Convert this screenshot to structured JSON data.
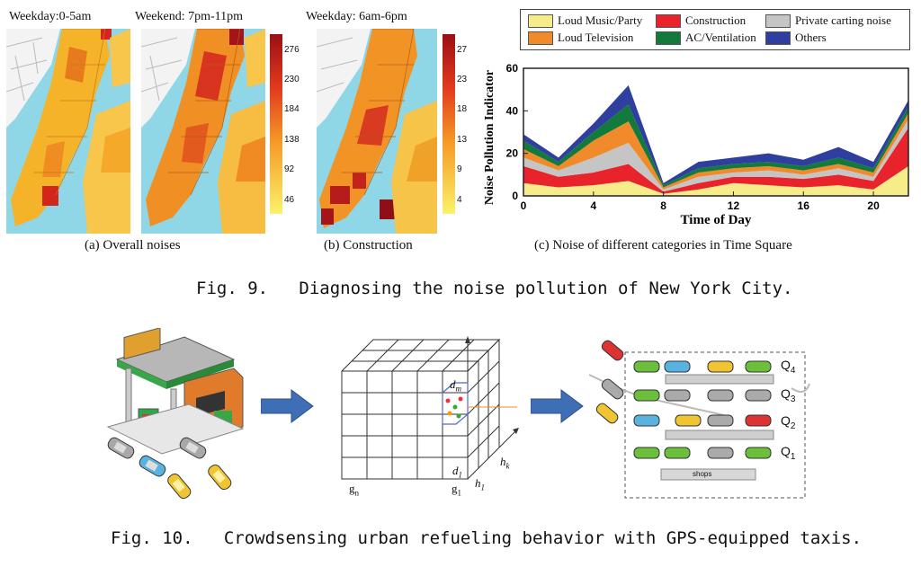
{
  "fig9": {
    "map_titles": [
      "Weekday:0-5am",
      "Weekend: 7pm-11pm",
      "Weekday: 6am-6pm"
    ],
    "colorbar_a": [
      "276",
      "230",
      "184",
      "138",
      "92",
      "46"
    ],
    "colorbar_b": [
      "27",
      "23",
      "18",
      "13",
      "9",
      "4"
    ],
    "sub_a": "(a) Overall noises",
    "sub_b": "(b) Construction",
    "sub_c": "(c) Noise of different categories in Time Square",
    "caption": "Fig. 9.   Diagnosing the noise pollution of New York City."
  },
  "fig10": {
    "caption": "Fig. 10.   Crowdsensing urban refueling behavior with GPS-equipped taxis.",
    "grid_labels": {
      "dm": "d",
      "dm_sub": "m",
      "d1": "d",
      "d1_sub": "1",
      "hk": "h",
      "hk_sub": "k",
      "h1": "h",
      "h1_sub": "1",
      "gn": "g",
      "gn_sub": "n",
      "g1": "g",
      "g1_sub": "1"
    },
    "queues": [
      "Q",
      "Q",
      "Q",
      "Q"
    ],
    "queue_subs": [
      "4",
      "3",
      "2",
      "1"
    ],
    "shops": "shops"
  },
  "chart_data": {
    "type": "area",
    "xlabel": "Time of Day",
    "ylabel": "Noise Pollution Indicator",
    "xlim": [
      0,
      22
    ],
    "ylim": [
      0,
      60
    ],
    "xticks": [
      0,
      4,
      8,
      12,
      16,
      20
    ],
    "yticks": [
      0,
      20,
      40,
      60
    ],
    "x": [
      0,
      2,
      4,
      6,
      8,
      10,
      12,
      14,
      16,
      18,
      20,
      22
    ],
    "series": [
      {
        "name": "Loud Music/Party",
        "color": "#f7ec8a",
        "values": [
          6,
          4,
          5,
          7,
          1,
          3,
          6,
          5,
          4,
          5,
          3,
          14
        ]
      },
      {
        "name": "Construction",
        "color": "#e8232b",
        "values": [
          8,
          5,
          6,
          8,
          1,
          3,
          3,
          4,
          4,
          5,
          4,
          18
        ]
      },
      {
        "name": "Private carting noise",
        "color": "#c5c5c5",
        "values": [
          4,
          3,
          7,
          10,
          1,
          3,
          2,
          3,
          2,
          3,
          2,
          4
        ]
      },
      {
        "name": "Loud Television",
        "color": "#f08a2a",
        "values": [
          4,
          2,
          8,
          10,
          1,
          2,
          2,
          2,
          2,
          2,
          2,
          3
        ]
      },
      {
        "name": "AC/Ventilation",
        "color": "#127a3a",
        "values": [
          4,
          2,
          4,
          8,
          1,
          2,
          2,
          2,
          2,
          3,
          2,
          3
        ]
      },
      {
        "name": "Others",
        "color": "#2f3f9f",
        "values": [
          3,
          2,
          4,
          9,
          1,
          3,
          3,
          4,
          3,
          5,
          3,
          3
        ]
      }
    ],
    "legend_order": [
      "Loud Music/Party",
      "Construction",
      "Private carting noise",
      "Loud Television",
      "AC/Ventilation",
      "Others"
    ],
    "legend_placement": "top"
  }
}
